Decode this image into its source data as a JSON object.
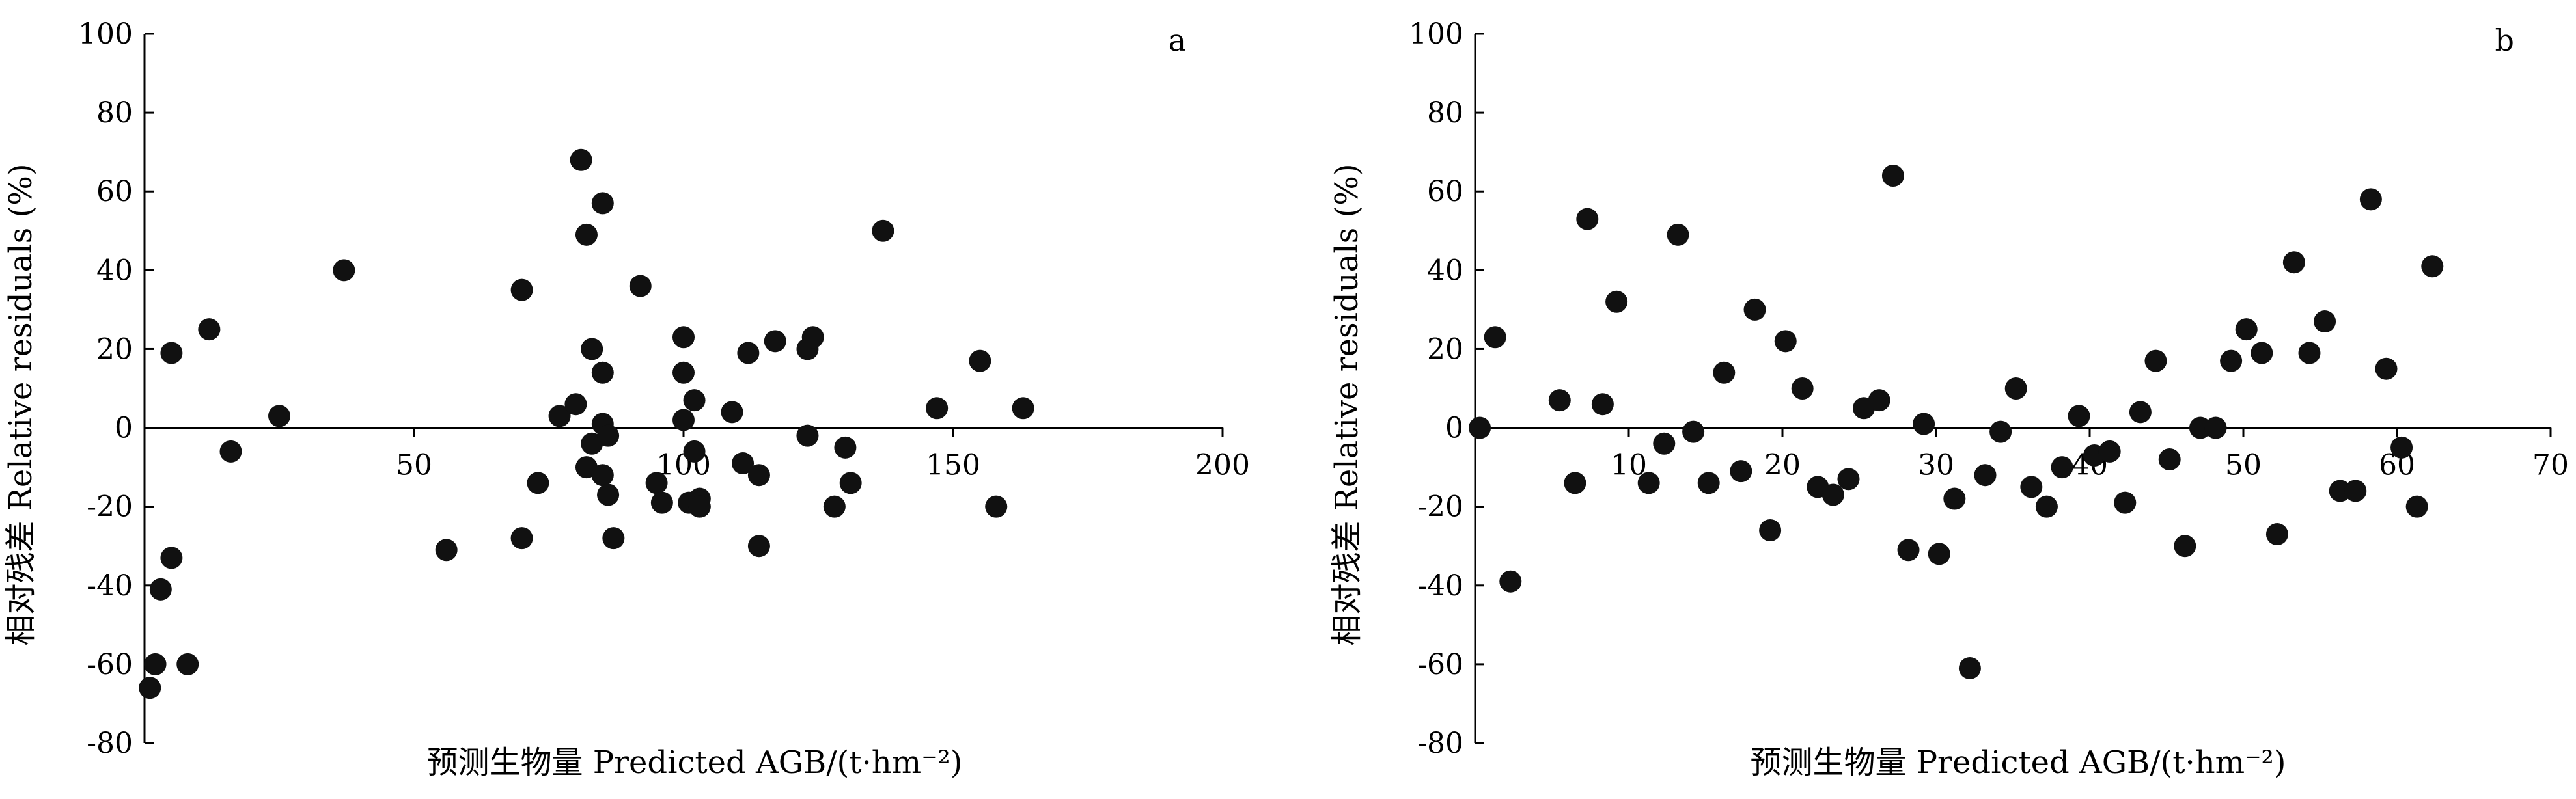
{
  "chart_data": [
    {
      "type": "scatter",
      "panel_label": "a",
      "ylabel": "相对残差 Relative residuals (%)",
      "xlabel": "预测生物量 Predicted AGB/(t·hm⁻²)",
      "xlim": [
        0,
        200
      ],
      "ylim": [
        -80,
        100
      ],
      "x_ticks": [
        50,
        100,
        150,
        200
      ],
      "y_ticks": [
        -80,
        -60,
        -40,
        -20,
        0,
        20,
        40,
        60,
        80,
        100
      ],
      "x_axis_at_y": 0,
      "grid": false,
      "points": [
        {
          "x": 1,
          "y": -66
        },
        {
          "x": 2,
          "y": -60
        },
        {
          "x": 3,
          "y": -41
        },
        {
          "x": 5,
          "y": -33
        },
        {
          "x": 5,
          "y": 19
        },
        {
          "x": 8,
          "y": -60
        },
        {
          "x": 12,
          "y": 25
        },
        {
          "x": 16,
          "y": -6
        },
        {
          "x": 25,
          "y": 3
        },
        {
          "x": 37,
          "y": 40
        },
        {
          "x": 56,
          "y": -31
        },
        {
          "x": 70,
          "y": 35
        },
        {
          "x": 70,
          "y": -28
        },
        {
          "x": 73,
          "y": -14
        },
        {
          "x": 77,
          "y": 3
        },
        {
          "x": 80,
          "y": 6
        },
        {
          "x": 81,
          "y": 68
        },
        {
          "x": 82,
          "y": 49
        },
        {
          "x": 82,
          "y": -10
        },
        {
          "x": 83,
          "y": 20
        },
        {
          "x": 83,
          "y": -4
        },
        {
          "x": 85,
          "y": 57
        },
        {
          "x": 85,
          "y": 14
        },
        {
          "x": 85,
          "y": 1
        },
        {
          "x": 85,
          "y": -12
        },
        {
          "x": 86,
          "y": -2
        },
        {
          "x": 86,
          "y": -17
        },
        {
          "x": 87,
          "y": -28
        },
        {
          "x": 92,
          "y": 36
        },
        {
          "x": 95,
          "y": -14
        },
        {
          "x": 96,
          "y": -19
        },
        {
          "x": 100,
          "y": 23
        },
        {
          "x": 100,
          "y": 14
        },
        {
          "x": 100,
          "y": 2
        },
        {
          "x": 101,
          "y": -19
        },
        {
          "x": 102,
          "y": 7
        },
        {
          "x": 102,
          "y": -6
        },
        {
          "x": 103,
          "y": -18
        },
        {
          "x": 103,
          "y": -20
        },
        {
          "x": 109,
          "y": 4
        },
        {
          "x": 111,
          "y": -9
        },
        {
          "x": 112,
          "y": 19
        },
        {
          "x": 114,
          "y": -12
        },
        {
          "x": 114,
          "y": -30
        },
        {
          "x": 117,
          "y": 22
        },
        {
          "x": 123,
          "y": 20
        },
        {
          "x": 123,
          "y": -2
        },
        {
          "x": 124,
          "y": 23
        },
        {
          "x": 128,
          "y": -20
        },
        {
          "x": 130,
          "y": -5
        },
        {
          "x": 131,
          "y": -14
        },
        {
          "x": 137,
          "y": 50
        },
        {
          "x": 147,
          "y": 5
        },
        {
          "x": 155,
          "y": 17
        },
        {
          "x": 158,
          "y": -20
        },
        {
          "x": 163,
          "y": 5
        }
      ]
    },
    {
      "type": "scatter",
      "panel_label": "b",
      "ylabel": "相对残差 Relative residuals (%)",
      "xlabel": "预测生物量 Predicted AGB/(t·hm⁻²)",
      "xlim": [
        0,
        70
      ],
      "ylim": [
        -80,
        100
      ],
      "x_ticks": [
        10,
        20,
        30,
        40,
        50,
        60,
        70
      ],
      "y_ticks": [
        -80,
        -60,
        -40,
        -20,
        0,
        20,
        40,
        60,
        80,
        100
      ],
      "x_axis_at_y": 0,
      "grid": false,
      "points": [
        {
          "x": 0.3,
          "y": 0
        },
        {
          "x": 1.3,
          "y": 23
        },
        {
          "x": 2.3,
          "y": -39
        },
        {
          "x": 5.5,
          "y": 7
        },
        {
          "x": 6.5,
          "y": -14
        },
        {
          "x": 7.3,
          "y": 53
        },
        {
          "x": 8.3,
          "y": 6
        },
        {
          "x": 9.2,
          "y": 32
        },
        {
          "x": 11.3,
          "y": -14
        },
        {
          "x": 12.3,
          "y": -4
        },
        {
          "x": 13.2,
          "y": 49
        },
        {
          "x": 14.2,
          "y": -1
        },
        {
          "x": 15.2,
          "y": -14
        },
        {
          "x": 16.2,
          "y": 14
        },
        {
          "x": 17.3,
          "y": -11
        },
        {
          "x": 18.2,
          "y": 30
        },
        {
          "x": 19.2,
          "y": -26
        },
        {
          "x": 20.2,
          "y": 22
        },
        {
          "x": 21.3,
          "y": 10
        },
        {
          "x": 22.3,
          "y": -15
        },
        {
          "x": 23.3,
          "y": -17
        },
        {
          "x": 24.3,
          "y": -13
        },
        {
          "x": 25.3,
          "y": 5
        },
        {
          "x": 26.3,
          "y": 7
        },
        {
          "x": 27.2,
          "y": 64
        },
        {
          "x": 28.2,
          "y": -31
        },
        {
          "x": 29.2,
          "y": 1
        },
        {
          "x": 30.2,
          "y": -32
        },
        {
          "x": 31.2,
          "y": -18
        },
        {
          "x": 32.2,
          "y": -61
        },
        {
          "x": 33.2,
          "y": -12
        },
        {
          "x": 34.2,
          "y": -1
        },
        {
          "x": 35.2,
          "y": 10
        },
        {
          "x": 36.2,
          "y": -15
        },
        {
          "x": 37.2,
          "y": -20
        },
        {
          "x": 38.2,
          "y": -10
        },
        {
          "x": 39.3,
          "y": 3
        },
        {
          "x": 40.3,
          "y": -7
        },
        {
          "x": 41.3,
          "y": -6
        },
        {
          "x": 42.3,
          "y": -19
        },
        {
          "x": 43.3,
          "y": 4
        },
        {
          "x": 44.3,
          "y": 17
        },
        {
          "x": 45.2,
          "y": -8
        },
        {
          "x": 46.2,
          "y": -30
        },
        {
          "x": 47.2,
          "y": 0
        },
        {
          "x": 48.2,
          "y": 0
        },
        {
          "x": 49.2,
          "y": 17
        },
        {
          "x": 50.2,
          "y": 25
        },
        {
          "x": 51.2,
          "y": 19
        },
        {
          "x": 52.2,
          "y": -27
        },
        {
          "x": 53.3,
          "y": 42
        },
        {
          "x": 54.3,
          "y": 19
        },
        {
          "x": 55.3,
          "y": 27
        },
        {
          "x": 56.3,
          "y": -16
        },
        {
          "x": 57.3,
          "y": -16
        },
        {
          "x": 58.3,
          "y": 58
        },
        {
          "x": 59.3,
          "y": 15
        },
        {
          "x": 60.3,
          "y": -5
        },
        {
          "x": 61.3,
          "y": -20
        },
        {
          "x": 62.3,
          "y": 41
        }
      ]
    }
  ]
}
